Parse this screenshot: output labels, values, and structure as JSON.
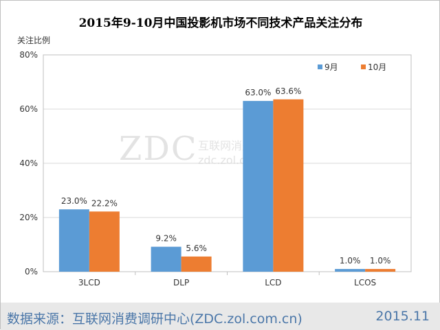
{
  "chart_data": {
    "type": "bar",
    "title": "2015年9-10月中国投影机市场不同技术产品关注分布",
    "ylabel": "关注比例",
    "xlabel": "",
    "categories": [
      "3LCD",
      "DLP",
      "LCD",
      "LCOS"
    ],
    "series": [
      {
        "name": "9月",
        "values": [
          23.0,
          9.2,
          63.0,
          1.0
        ],
        "labels": [
          "23.0%",
          "9.2%",
          "63.0%",
          "1.0%"
        ],
        "color": "#5b9bd5"
      },
      {
        "name": "10月",
        "values": [
          22.2,
          5.6,
          63.6,
          1.0
        ],
        "labels": [
          "22.2%",
          "5.6%",
          "63.6%",
          "1.0%"
        ],
        "color": "#ed7d31"
      }
    ],
    "ylim": [
      0,
      80
    ],
    "yticks": [
      0,
      20,
      40,
      60,
      80
    ],
    "ytick_labels": [
      "0%",
      "20%",
      "40%",
      "60%",
      "80%"
    ],
    "grid": true,
    "legend_position": "top-right"
  },
  "watermark": {
    "logo": "ZDC",
    "name": "互联网消费调研中心",
    "url": "zdc.zol.com.cn"
  },
  "footer": {
    "source": "数据来源：互联网消费调研中心(ZDC.zol.com.cn)",
    "date": "2015.11"
  }
}
